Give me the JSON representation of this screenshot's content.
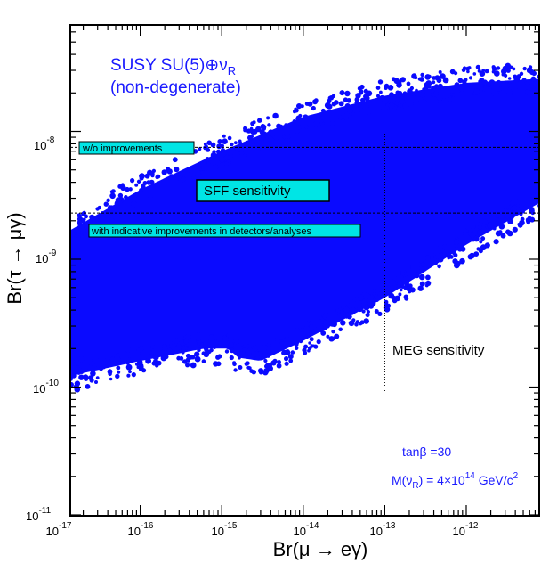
{
  "chart_data": {
    "type": "scatter",
    "title": "",
    "xlabel": "Br(μ → eγ)",
    "ylabel": "Br(τ → μγ)",
    "x_scale": "log",
    "y_scale": "log",
    "xlim": [
      1e-17,
      1e-11
    ],
    "ylim": [
      1e-11,
      3e-08
    ],
    "x_ticks": [
      {
        "base": "10",
        "exp": "-17",
        "value": 1e-17
      },
      {
        "base": "10",
        "exp": "-16",
        "value": 1e-16
      },
      {
        "base": "10",
        "exp": "-15",
        "value": 1e-15
      },
      {
        "base": "10",
        "exp": "-14",
        "value": 1e-14
      },
      {
        "base": "10",
        "exp": "-13",
        "value": 1e-13
      },
      {
        "base": "10",
        "exp": "-12",
        "value": 1e-12
      }
    ],
    "y_ticks": [
      {
        "base": "10",
        "exp": "-11",
        "value": 1e-11
      },
      {
        "base": "10",
        "exp": "-10",
        "value": 1e-10
      },
      {
        "base": "10",
        "exp": "-9",
        "value": 1e-09
      },
      {
        "base": "10",
        "exp": "-8",
        "value": 1e-08
      }
    ],
    "scatter_color": "#0a0aff",
    "scatter_region": {
      "upper_edge": [
        [
          1.2e-17,
          1.6e-09
        ],
        [
          1e-16,
          3.5e-09
        ],
        [
          1e-15,
          7e-09
        ],
        [
          1e-14,
          1.3e-08
        ],
        [
          1e-13,
          1.9e-08
        ],
        [
          1e-12,
          2.4e-08
        ],
        [
          1e-11,
          2.6e-08
        ]
      ],
      "lower_edge": [
        [
          1.2e-17,
          1.2e-10
        ],
        [
          1e-16,
          1.6e-10
        ],
        [
          6e-16,
          2e-10
        ],
        [
          1.2e-15,
          2e-10
        ],
        [
          1.6e-15,
          1.7e-10
        ],
        [
          3e-15,
          1.6e-10
        ],
        [
          1e-14,
          2.3e-10
        ],
        [
          1e-13,
          5e-10
        ],
        [
          1e-12,
          1.3e-09
        ],
        [
          1e-11,
          3e-09
        ]
      ]
    },
    "reference_lines": [
      {
        "orientation": "horizontal",
        "value": 7.5e-09,
        "label": "w/o improvements"
      },
      {
        "orientation": "horizontal",
        "value": 2.3e-09,
        "label": "with indicative improvements in detectors/analyses"
      },
      {
        "orientation": "vertical",
        "value": 1e-13,
        "label": "MEG sensitivity"
      }
    ],
    "sff_box_label": "SFF sensitivity",
    "model_title": {
      "main": "SUSY SU(5)⊕ν",
      "sub": "R"
    },
    "model_subtitle": "(non-degenerate)",
    "param_tanb": "tanβ =30",
    "param_mass": {
      "prefix": "M(ν",
      "sub": "R",
      "mid": ") = 4×10",
      "exp": "14",
      "suffix": " GeV/c",
      "sup2": "2"
    },
    "box_fill": "#00e5e5",
    "label_color": "#1a1aff"
  }
}
